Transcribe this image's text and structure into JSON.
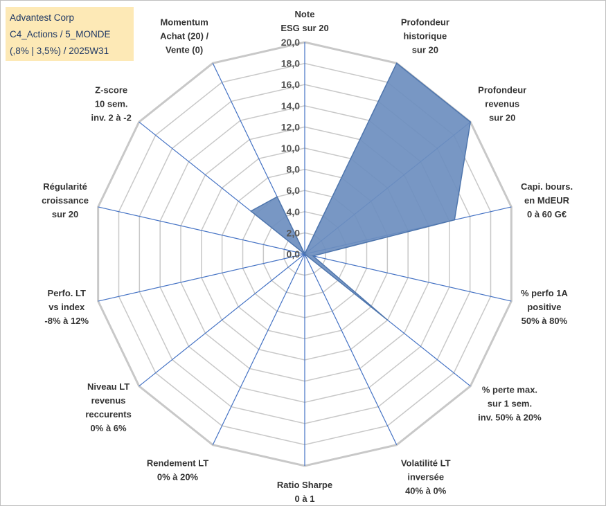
{
  "header": {
    "line1": "Advantest Corp",
    "line2": "C4_Actions / 5_MONDE",
    "line3": "(,8% | 3,5%) / 2025W31"
  },
  "chart_data": {
    "type": "radar",
    "rlim": [
      0,
      20
    ],
    "r_ticks": [
      "0,0",
      "2,0",
      "4,0",
      "6,0",
      "8,0",
      "10,0",
      "12,0",
      "14,0",
      "16,0",
      "18,0",
      "20,0"
    ],
    "grid": true,
    "axes": [
      {
        "label": [
          "Note",
          "ESG sur 20"
        ],
        "value": 0
      },
      {
        "label": [
          "Profondeur",
          "historique",
          "sur 20"
        ],
        "value": 20
      },
      {
        "label": [
          "Profondeur",
          "revenus",
          "sur 20"
        ],
        "value": 20
      },
      {
        "label": [
          "Capi. bours.",
          "en MdEUR",
          "0 à 60 G€"
        ],
        "value": 14.5
      },
      {
        "label": [
          "% perfo 1A",
          "positive",
          "50% à 80%"
        ],
        "value": 0.8
      },
      {
        "label": [
          "% perte max.",
          "sur 1 sem.",
          "inv. 50% à 20%"
        ],
        "value": 10
      },
      {
        "label": [
          "Volatilité LT",
          "inversée",
          "40% à 0%"
        ],
        "value": 0
      },
      {
        "label": [
          "Ratio Sharpe",
          "0 à 1"
        ],
        "value": 0
      },
      {
        "label": [
          "Rendement LT",
          "0% à 20%"
        ],
        "value": 0
      },
      {
        "label": [
          "Niveau LT",
          "revenus",
          "reccurents",
          "0% à 6%"
        ],
        "value": 0
      },
      {
        "label": [
          "Perfo. LT",
          "vs index",
          "-8% à 12%"
        ],
        "value": 0
      },
      {
        "label": [
          "Régularité",
          "croissance",
          "sur 20"
        ],
        "value": 0
      },
      {
        "label": [
          "Z-score",
          "10 sem.",
          "inv. 2 à -2"
        ],
        "value": 6.5
      },
      {
        "label": [
          "Momentum",
          "Achat (20) /",
          "Vente (0)"
        ],
        "value": 6
      }
    ],
    "series": [
      {
        "values": [
          0,
          20,
          20,
          14.5,
          0.8,
          10,
          0,
          0,
          0,
          0,
          0,
          0,
          6.5,
          6
        ]
      }
    ],
    "colors": {
      "fill": "#6c8ebf",
      "stroke": "#4f76ad",
      "spoke": "#4472c4",
      "grid": "#c8c8c8"
    }
  }
}
